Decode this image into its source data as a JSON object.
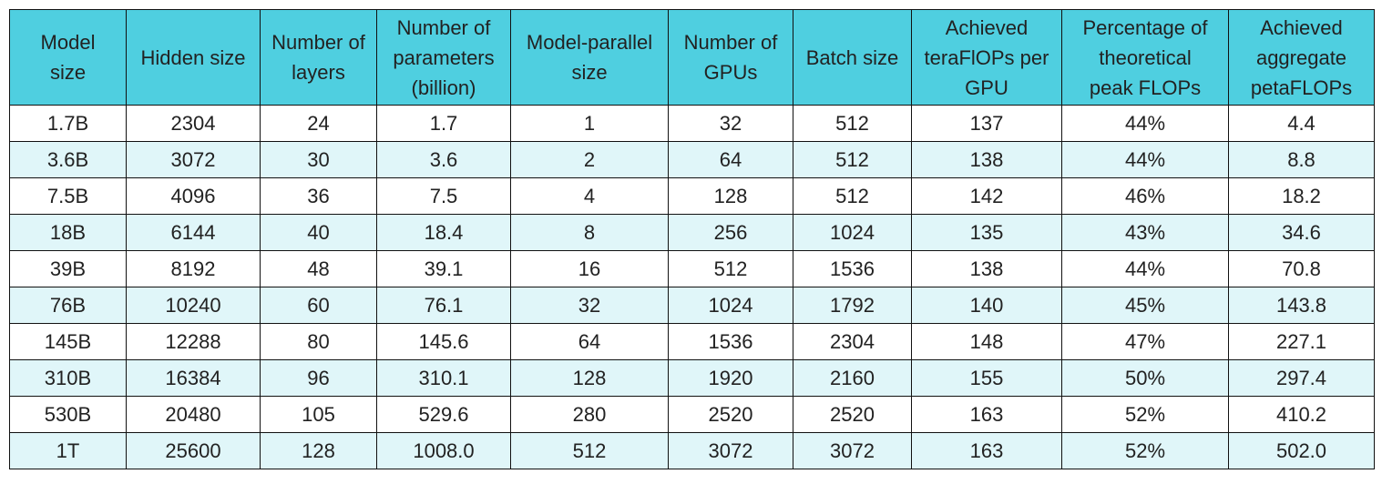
{
  "table": {
    "header": [
      "Model\nsize",
      "Hidden size",
      "Number of\nlayers",
      "Number of\nparameters\n(billion)",
      "Model-parallel\nsize",
      "Number of\nGPUs",
      "Batch size",
      "Achieved\nteraFlOPs per\nGPU",
      "Percentage of\ntheoretical\npeak FLOPs",
      "Achieved\naggregate\npetaFLOPs"
    ],
    "rows": [
      [
        "1.7B",
        "2304",
        "24",
        "1.7",
        "1",
        "32",
        "512",
        "137",
        "44%",
        "4.4"
      ],
      [
        "3.6B",
        "3072",
        "30",
        "3.6",
        "2",
        "64",
        "512",
        "138",
        "44%",
        "8.8"
      ],
      [
        "7.5B",
        "4096",
        "36",
        "7.5",
        "4",
        "128",
        "512",
        "142",
        "46%",
        "18.2"
      ],
      [
        "18B",
        "6144",
        "40",
        "18.4",
        "8",
        "256",
        "1024",
        "135",
        "43%",
        "34.6"
      ],
      [
        "39B",
        "8192",
        "48",
        "39.1",
        "16",
        "512",
        "1536",
        "138",
        "44%",
        "70.8"
      ],
      [
        "76B",
        "10240",
        "60",
        "76.1",
        "32",
        "1024",
        "1792",
        "140",
        "45%",
        "143.8"
      ],
      [
        "145B",
        "12288",
        "80",
        "145.6",
        "64",
        "1536",
        "2304",
        "148",
        "47%",
        "227.1"
      ],
      [
        "310B",
        "16384",
        "96",
        "310.1",
        "128",
        "1920",
        "2160",
        "155",
        "50%",
        "297.4"
      ],
      [
        "530B",
        "20480",
        "105",
        "529.6",
        "280",
        "2520",
        "2520",
        "163",
        "52%",
        "410.2"
      ],
      [
        "1T",
        "25600",
        "128",
        "1008.0",
        "512",
        "3072",
        "3072",
        "163",
        "52%",
        "502.0"
      ]
    ]
  }
}
